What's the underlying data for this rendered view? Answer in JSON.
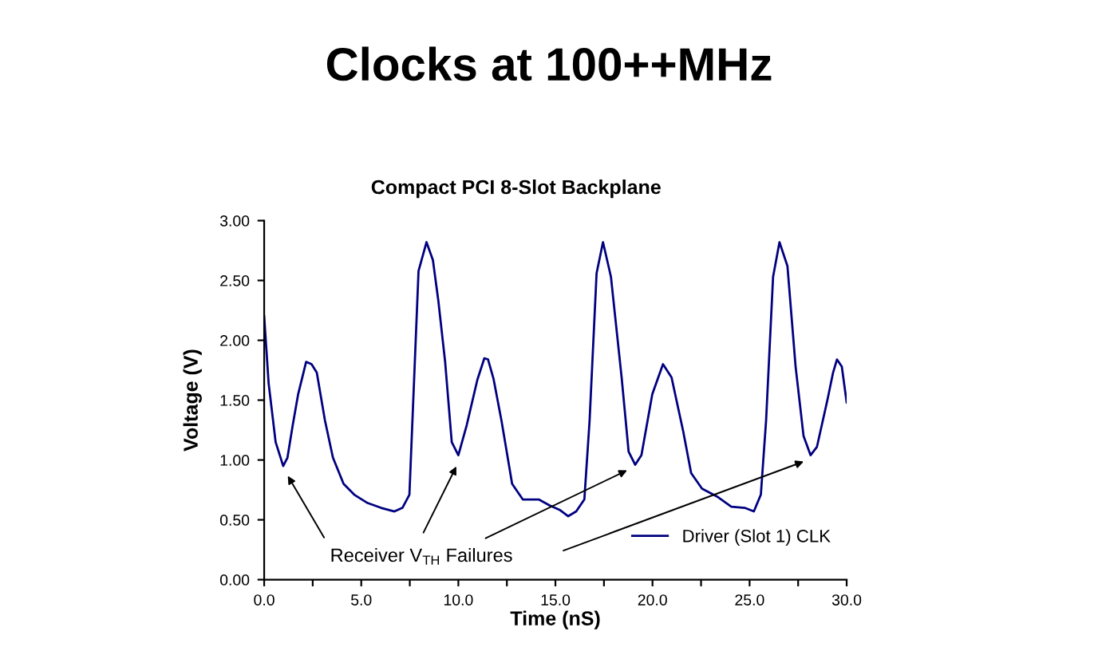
{
  "chart_data": {
    "type": "line",
    "title": "Clocks at 100++MHz",
    "subtitle": "Compact PCI 8-Slot Backplane",
    "xlabel": "Time (nS)",
    "ylabel": "Voltage (V)",
    "xlim": [
      0,
      30
    ],
    "xticks": [
      {
        "value": 0,
        "label": "0.0"
      },
      {
        "value": 2.5,
        "label": null
      },
      {
        "value": 5,
        "label": "5.0"
      },
      {
        "value": 7.5,
        "label": null
      },
      {
        "value": 10,
        "label": "10.0"
      },
      {
        "value": 12.5,
        "label": null
      },
      {
        "value": 15,
        "label": "15.0"
      },
      {
        "value": 17.5,
        "label": null
      },
      {
        "value": 20,
        "label": "20.0"
      },
      {
        "value": 22.5,
        "label": null
      },
      {
        "value": 25,
        "label": "25.0"
      },
      {
        "value": 27.5,
        "label": null
      },
      {
        "value": 30,
        "label": "30.0"
      }
    ],
    "ylim": [
      0,
      3
    ],
    "yticks": [
      {
        "value": 0,
        "label": "0.00"
      },
      {
        "value": 0.5,
        "label": "0.50"
      },
      {
        "value": 1,
        "label": "1.00"
      },
      {
        "value": 1.5,
        "label": "1.50"
      },
      {
        "value": 2,
        "label": "2.00"
      },
      {
        "value": 2.5,
        "label": "2.50"
      },
      {
        "value": 3,
        "label": "3.00"
      }
    ],
    "grid": false,
    "legend": "bottom right",
    "marker": "none",
    "line_style": "solid",
    "annotations": [
      "Receiver V$_{TH}$ Failures"
    ],
    "series": [
      {
        "name": "Driver (Slot 1) CLK",
        "color": "#000080",
        "x": [
          0,
          0.23,
          0.59,
          0.98,
          1.2,
          1.47,
          1.75,
          2.16,
          2.44,
          2.71,
          3.13,
          3.54,
          4.09,
          4.64,
          5.33,
          6.02,
          6.71,
          7.12,
          7.48,
          7.95,
          8.36,
          8.69,
          8.97,
          9.32,
          9.66,
          10.0,
          10.43,
          10.98,
          11.34,
          11.53,
          11.81,
          12.22,
          12.77,
          13.32,
          14.14,
          14.7,
          15.25,
          15.66,
          16.07,
          16.49,
          16.76,
          17.12,
          17.45,
          17.86,
          18.41,
          18.77,
          19.11,
          19.43,
          19.99,
          20.54,
          20.98,
          21.58,
          21.99,
          22.55,
          23.37,
          24.06,
          24.75,
          25.22,
          25.58,
          25.85,
          26.21,
          26.54,
          26.95,
          27.37,
          27.78,
          28.14,
          28.47,
          29.02,
          29.3,
          29.5,
          29.75,
          30.0
        ],
        "values": [
          2.2,
          1.64,
          1.15,
          0.95,
          1.02,
          1.29,
          1.55,
          1.82,
          1.8,
          1.73,
          1.33,
          1.02,
          0.8,
          0.71,
          0.64,
          0.6,
          0.57,
          0.6,
          0.71,
          2.58,
          2.82,
          2.67,
          2.33,
          1.82,
          1.15,
          1.04,
          1.29,
          1.67,
          1.85,
          1.84,
          1.68,
          1.33,
          0.8,
          0.67,
          0.67,
          0.62,
          0.58,
          0.53,
          0.57,
          0.67,
          1.33,
          2.56,
          2.82,
          2.53,
          1.69,
          1.07,
          0.96,
          1.04,
          1.55,
          1.8,
          1.69,
          1.24,
          0.89,
          0.76,
          0.69,
          0.61,
          0.6,
          0.57,
          0.71,
          1.33,
          2.53,
          2.82,
          2.62,
          1.78,
          1.2,
          1.04,
          1.11,
          1.51,
          1.73,
          1.84,
          1.78,
          1.48
        ]
      }
    ]
  }
}
